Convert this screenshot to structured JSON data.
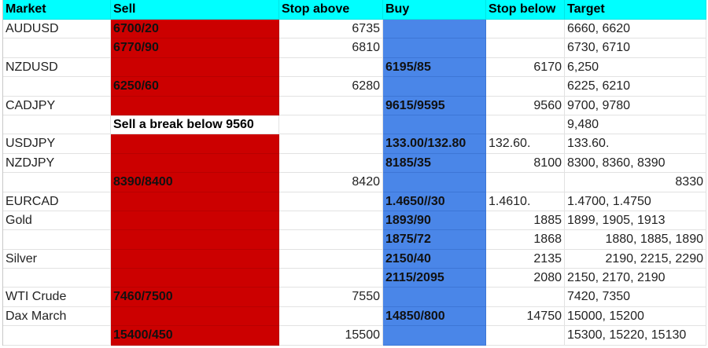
{
  "colors": {
    "header": "#00ffff",
    "sell": "#cc0000",
    "buy": "#4a86e8"
  },
  "headers": [
    "Market",
    "Sell",
    "Stop above",
    "Buy",
    "Stop below",
    "Target"
  ],
  "rows": [
    [
      "AUDUSD",
      "6700/20",
      "6735",
      "",
      "",
      "6660, 6620"
    ],
    [
      "",
      "6770/90",
      "6810",
      "",
      "",
      "6730, 6710"
    ],
    [
      "NZDUSD",
      "",
      "",
      "6195/85",
      "6170",
      "6,250"
    ],
    [
      "",
      "6250/60",
      "6280",
      "",
      "",
      "6225, 6210"
    ],
    [
      "CADJPY",
      "",
      "",
      "9615/9595",
      "9560",
      "9700, 9780"
    ],
    [
      "",
      "Sell a break below 9560",
      "",
      "",
      "",
      "9,480"
    ],
    [
      "USDJPY",
      "",
      "",
      "133.00/132.80",
      "132.60.",
      "133.60."
    ],
    [
      "NZDJPY",
      "",
      "",
      "8185/35",
      "8100",
      "8300, 8360, 8390"
    ],
    [
      "",
      "8390/8400",
      "8420",
      "",
      "",
      "8330"
    ],
    [
      "EURCAD",
      "",
      "",
      "1.4650//30",
      "1.4610.",
      "1.4700, 1.4750"
    ],
    [
      "Gold",
      "",
      "",
      "1893/90",
      "1885",
      "1899, 1905, 1913"
    ],
    [
      "",
      "",
      "",
      "1875/72",
      "1868",
      "1880, 1885, 1890"
    ],
    [
      "Silver",
      "",
      "",
      "2150/40",
      "2135",
      "2190, 2215, 2290"
    ],
    [
      "",
      "",
      "",
      "2115/2095",
      "2080",
      "2150, 2170, 2190"
    ],
    [
      "WTI Crude",
      "7460/7500",
      "7550",
      "",
      "",
      "7420, 7350"
    ],
    [
      "Dax March",
      "",
      "",
      "14850/800",
      "14750",
      "15000, 15200"
    ],
    [
      "",
      "15400/450",
      "15500",
      "",
      "",
      "15300, 15220, 15130"
    ]
  ]
}
